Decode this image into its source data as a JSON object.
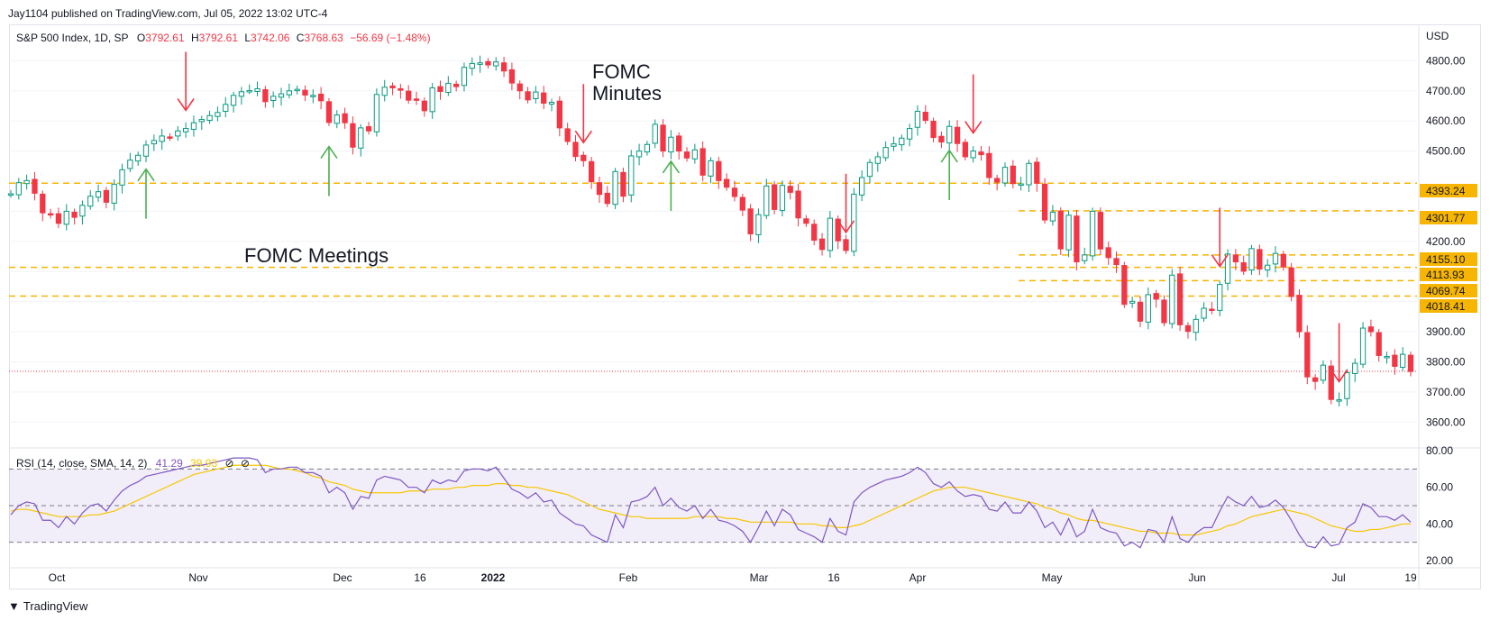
{
  "header": {
    "published": "Jay1104 published on TradingView.com, Jul 05, 2022 13:02 UTC-4"
  },
  "legend": {
    "symbol": "S&P 500 Index, 1D, SP",
    "o_label": "O",
    "o_value": "3792.61",
    "h_label": "H",
    "h_value": "3792.61",
    "l_label": "L",
    "l_value": "3742.06",
    "c_label": "C",
    "c_value": "3768.63",
    "change": "−56.69 (−1.48%)"
  },
  "rsi_legend": {
    "name": "RSI (14, close, SMA, 14, 2)",
    "rsi_value": "41.29",
    "sma_value": "39.93",
    "icon1": "⊘",
    "icon2": "⊘"
  },
  "annotations": {
    "fomc_meetings": "FOMC Meetings",
    "fomc_minutes_line1": "FOMC",
    "fomc_minutes_line2": "Minutes"
  },
  "footer": {
    "brand": "TradingView",
    "logo_icon": "tradingview-logo-icon"
  },
  "chart_data": [
    {
      "type": "candlestick",
      "title": "S&P 500 Index, 1D, SP",
      "currency_label": "USD",
      "ylim": [
        3520,
        4870
      ],
      "y_ticks": [
        "4800.00",
        "4700.00",
        "4600.00",
        "4500.00",
        "4200.00",
        "3900.00",
        "3800.00",
        "3700.00",
        "3600.00"
      ],
      "x_ticks": [
        "Oct",
        "Nov",
        "Dec",
        "16",
        "2022",
        "Feb",
        "Mar",
        "16",
        "Apr",
        "May",
        "Jun",
        "Jul",
        "19"
      ],
      "price_levels": [
        {
          "value": 4393.24,
          "label": "4393.24"
        },
        {
          "value": 4301.77,
          "label": "4301.77"
        },
        {
          "value": 4155.1,
          "label": "4155.10"
        },
        {
          "value": 4113.93,
          "label": "4113.93"
        },
        {
          "value": 4069.74,
          "label": "4069.74"
        },
        {
          "value": 4018.41,
          "label": "4018.41"
        }
      ],
      "last_price": 3768.63,
      "colors": {
        "up": "#089981",
        "down": "#f23645",
        "level": "#f7b500",
        "up_arrow": "#4caf50",
        "down_arrow": "#f23645"
      },
      "closes": [
        4358,
        4395,
        4402,
        4360,
        4295,
        4288,
        4260,
        4300,
        4280,
        4320,
        4350,
        4365,
        4330,
        4390,
        4438,
        4470,
        4486,
        4520,
        4535,
        4550,
        4546,
        4567,
        4575,
        4594,
        4605,
        4618,
        4628,
        4655,
        4685,
        4697,
        4701,
        4707,
        4664,
        4682,
        4690,
        4700,
        4705,
        4686,
        4685,
        4667,
        4595,
        4620,
        4594,
        4513,
        4577,
        4567,
        4688,
        4712,
        4710,
        4702,
        4669,
        4669,
        4634,
        4710,
        4698,
        4725,
        4714,
        4778,
        4791,
        4793,
        4786,
        4796,
        4766,
        4726,
        4700,
        4670,
        4696,
        4659,
        4662,
        4577,
        4532,
        4482,
        4468,
        4398,
        4356,
        4326,
        4432,
        4350,
        4484,
        4500,
        4522,
        4589,
        4500,
        4546,
        4500,
        4477,
        4504,
        4420,
        4468,
        4402,
        4380,
        4349,
        4304,
        4225,
        4289,
        4384,
        4306,
        4386,
        4363,
        4278,
        4260,
        4204,
        4173,
        4277,
        4202,
        4170,
        4357,
        4412,
        4462,
        4481,
        4512,
        4524,
        4543,
        4575,
        4632,
        4602,
        4545,
        4530,
        4582,
        4525,
        4481,
        4500,
        4488,
        4412,
        4397,
        4446,
        4392,
        4391,
        4459,
        4393,
        4271,
        4297,
        4175,
        4287,
        4132,
        4155,
        4300,
        4175,
        4146,
        4123,
        3991,
        4001,
        3935,
        4023,
        4008,
        3930,
        4088,
        3923,
        3901,
        3941,
        3978,
        3974,
        4057,
        4158,
        4132,
        4101,
        4176,
        4108,
        4121,
        4160,
        4115,
        4017,
        3900,
        3750,
        3735,
        3789,
        3675,
        3674,
        3764,
        3795,
        3912,
        3900,
        3821,
        3818,
        3785,
        3825,
        3768
      ]
    },
    {
      "type": "line",
      "title": "RSI (14, close, SMA, 14, 2)",
      "ylim": [
        20,
        80
      ],
      "y_ticks": [
        "80.00",
        "60.00",
        "40.00",
        "20.00"
      ],
      "bands": {
        "upper": 70,
        "middle": 50,
        "lower": 30
      },
      "series": [
        {
          "name": "RSI",
          "color": "#7e57c2",
          "values": [
            45,
            50,
            52,
            51,
            42,
            42,
            38,
            44,
            40,
            46,
            50,
            51,
            47,
            53,
            58,
            61,
            63,
            66,
            67,
            68,
            69,
            70,
            71,
            72,
            72,
            73,
            74,
            75,
            76,
            76,
            76,
            75,
            68,
            70,
            70,
            71,
            71,
            68,
            68,
            66,
            57,
            60,
            57,
            48,
            55,
            54,
            64,
            66,
            65,
            64,
            60,
            60,
            57,
            64,
            62,
            64,
            63,
            69,
            70,
            70,
            69,
            71,
            65,
            59,
            57,
            54,
            57,
            52,
            53,
            46,
            43,
            40,
            39,
            34,
            32,
            30,
            45,
            38,
            52,
            53,
            55,
            60,
            50,
            54,
            49,
            47,
            50,
            43,
            48,
            42,
            41,
            39,
            36,
            30,
            38,
            47,
            39,
            48,
            45,
            37,
            35,
            33,
            30,
            43,
            36,
            34,
            52,
            57,
            60,
            62,
            64,
            65,
            66,
            68,
            71,
            68,
            62,
            60,
            63,
            58,
            55,
            56,
            55,
            48,
            47,
            52,
            46,
            46,
            52,
            47,
            38,
            41,
            34,
            43,
            33,
            36,
            48,
            38,
            36,
            35,
            28,
            30,
            27,
            37,
            36,
            30,
            44,
            32,
            30,
            35,
            38,
            38,
            47,
            55,
            52,
            50,
            55,
            49,
            50,
            53,
            49,
            42,
            34,
            28,
            27,
            33,
            28,
            29,
            38,
            41,
            51,
            49,
            44,
            44,
            42,
            45,
            41
          ]
        },
        {
          "name": "SMA",
          "color": "#f7c600",
          "values": [
            47,
            48,
            48,
            47,
            46,
            45,
            44,
            44,
            44,
            44,
            45,
            45,
            46,
            47,
            49,
            51,
            53,
            55,
            57,
            59,
            61,
            63,
            65,
            67,
            68,
            69,
            70,
            71,
            72,
            72,
            72,
            72,
            72,
            71,
            70,
            70,
            69,
            68,
            66,
            65,
            63,
            62,
            61,
            59,
            58,
            57,
            57,
            57,
            57,
            57,
            58,
            58,
            58,
            59,
            59,
            59,
            60,
            60,
            61,
            61,
            61,
            62,
            62,
            61,
            61,
            60,
            60,
            59,
            58,
            57,
            56,
            54,
            52,
            50,
            48,
            47,
            46,
            45,
            44,
            44,
            43,
            43,
            43,
            43,
            43,
            43,
            44,
            44,
            44,
            44,
            43,
            43,
            42,
            41,
            41,
            41,
            41,
            41,
            41,
            40,
            40,
            40,
            39,
            39,
            38,
            38,
            39,
            40,
            42,
            44,
            46,
            48,
            50,
            52,
            54,
            56,
            58,
            59,
            60,
            60,
            60,
            59,
            58,
            57,
            56,
            55,
            54,
            53,
            52,
            51,
            49,
            48,
            46,
            45,
            43,
            42,
            42,
            41,
            40,
            39,
            38,
            37,
            36,
            36,
            35,
            35,
            35,
            34,
            34,
            34,
            35,
            36,
            37,
            39,
            40,
            42,
            44,
            45,
            46,
            47,
            48,
            47,
            46,
            45,
            43,
            41,
            39,
            38,
            37,
            36,
            36,
            37,
            37,
            38,
            39,
            40,
            40
          ]
        }
      ]
    }
  ],
  "markers": {
    "down_arrow_bars": [
      22,
      72,
      105,
      121,
      152,
      167,
      220,
      251
    ],
    "up_arrow_bars": [
      17,
      40,
      83,
      118,
      182,
      232
    ],
    "fomc_minutes_arrows_bars": [
      98
    ]
  }
}
